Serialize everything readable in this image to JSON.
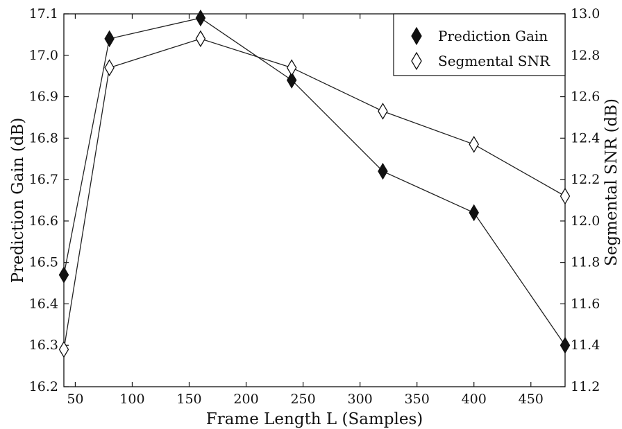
{
  "chart_data": {
    "type": "line",
    "title": "",
    "xlabel": "Frame Length L (Samples)",
    "ylabel_left": "Prediction Gain (dB)",
    "ylabel_right": "Segmental SNR (dB)",
    "x": [
      40,
      80,
      160,
      240,
      320,
      400,
      480
    ],
    "xlim": [
      40,
      480
    ],
    "x_ticks": [
      50,
      100,
      150,
      200,
      250,
      300,
      350,
      400,
      450
    ],
    "ylim_left": [
      16.2,
      17.1
    ],
    "y_ticks_left": [
      "16.2",
      "16.3",
      "16.4",
      "16.5",
      "16.6",
      "16.7",
      "16.8",
      "16.9",
      "17.0",
      "17.1"
    ],
    "ylim_right": [
      11.2,
      13.0
    ],
    "y_ticks_right": [
      "11.2",
      "11.4",
      "11.6",
      "11.8",
      "12.0",
      "12.2",
      "12.4",
      "12.6",
      "12.8",
      "13.0"
    ],
    "grid": false,
    "legend_position": "top-right",
    "series": [
      {
        "name": "Prediction Gain",
        "axis": "left",
        "marker": "filled-diamond",
        "values": [
          16.47,
          17.04,
          17.09,
          16.94,
          16.72,
          16.62,
          16.3
        ]
      },
      {
        "name": "Segmental SNR",
        "axis": "right",
        "marker": "open-diamond",
        "values": [
          11.38,
          12.74,
          12.88,
          12.74,
          12.53,
          12.37,
          12.12
        ]
      }
    ]
  }
}
